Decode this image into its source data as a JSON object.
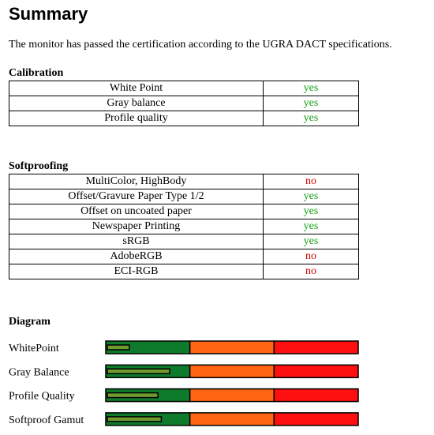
{
  "header": {
    "title": "Summary",
    "intro": "The monitor has passed the certification according to the UGRA DACT specifications."
  },
  "status_colors": {
    "yes": "#16a016",
    "no": "#cc0000"
  },
  "calibration": {
    "heading": "Calibration",
    "rows": [
      [
        "White Point",
        "yes"
      ],
      [
        "Gray balance",
        "yes"
      ],
      [
        "Profile quality",
        "yes"
      ]
    ]
  },
  "softproofing": {
    "heading": "Softproofing",
    "rows": [
      [
        "MultiColor, HighBody",
        "no"
      ],
      [
        "Offset/Gravure Paper Type 1/2",
        "yes"
      ],
      [
        "Offset on uncoated paper",
        "yes"
      ],
      [
        "Newspaper Printing",
        "yes"
      ],
      [
        "sRGB",
        "yes"
      ],
      [
        "AdobeRGB",
        "no"
      ],
      [
        "ECI-RGB",
        "no"
      ]
    ]
  },
  "diagram": {
    "heading": "Diagram",
    "xlim": [
      0,
      3
    ],
    "bar_color": "#6f9a2e",
    "zones": [
      {
        "from": 0,
        "to": 1,
        "color": "#0e7a2c"
      },
      {
        "from": 1,
        "to": 2,
        "color": "#ff6412"
      },
      {
        "from": 2,
        "to": 3,
        "color": "#ff1010"
      }
    ],
    "rows": [
      {
        "label": "WhitePoint",
        "value": 0.28
      },
      {
        "label": "Gray Balance",
        "value": 0.76
      },
      {
        "label": "Profile Quality",
        "value": 0.62
      },
      {
        "label": "Softproof Gamut",
        "value": 0.66
      }
    ]
  }
}
